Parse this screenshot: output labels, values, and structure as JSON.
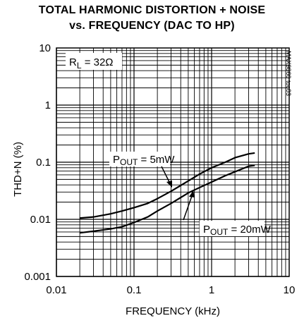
{
  "chart_data": {
    "type": "line",
    "title_line1": "TOTAL HARMONIC DISTORTION + NOISE",
    "title_line2": "vs. FREQUENCY (DAC TO HP)",
    "xlabel": "FREQUENCY (kHz)",
    "ylabel": "THD+N (%)",
    "x_scale": "log",
    "y_scale": "log",
    "xlim": [
      0.01,
      10
    ],
    "ylim": [
      0.001,
      10
    ],
    "x_ticks": [
      "0.01",
      "0.1",
      "1",
      "10"
    ],
    "y_ticks": [
      "0.001",
      "0.01",
      "0.1",
      "1",
      "10"
    ],
    "grid": true,
    "load_condition": {
      "prefix": "R",
      "sub": "L",
      "value": " = 32Ω"
    },
    "figure_id": "MAX9860 toc03",
    "series": [
      {
        "label_prefix": "P",
        "label_sub": "OUT",
        "label_value": " = 5mW",
        "x": [
          0.02,
          0.03,
          0.05,
          0.07,
          0.1,
          0.15,
          0.2,
          0.3,
          0.5,
          0.7,
          1.0,
          1.5,
          2.0,
          3.0,
          3.6
        ],
        "y": [
          0.0105,
          0.011,
          0.0125,
          0.014,
          0.016,
          0.019,
          0.023,
          0.031,
          0.047,
          0.062,
          0.08,
          0.1,
          0.12,
          0.14,
          0.145
        ]
      },
      {
        "label_prefix": "P",
        "label_sub": "OUT",
        "label_value": " = 20mW",
        "x": [
          0.02,
          0.03,
          0.05,
          0.07,
          0.1,
          0.15,
          0.2,
          0.3,
          0.5,
          0.7,
          1.0,
          1.5,
          2.0,
          3.0,
          3.6
        ],
        "y": [
          0.0058,
          0.0062,
          0.0068,
          0.0074,
          0.0088,
          0.011,
          0.014,
          0.019,
          0.029,
          0.036,
          0.045,
          0.058,
          0.068,
          0.085,
          0.088
        ]
      }
    ]
  }
}
